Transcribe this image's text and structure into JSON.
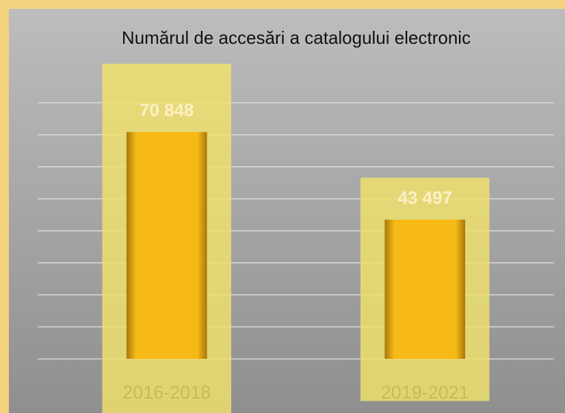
{
  "chart_data": {
    "type": "bar",
    "title": "Numărul de accesări a catalogului electronic",
    "categories": [
      "2016-2018",
      "2019-2021"
    ],
    "values": [
      70848,
      43497
    ],
    "value_labels": [
      "70 848",
      "43 497"
    ],
    "color": "#f7b919",
    "ylim": [
      0,
      80000
    ],
    "yticks": [
      0,
      10000,
      20000,
      30000,
      40000,
      50000,
      60000,
      70000,
      80000
    ],
    "grid": true
  }
}
